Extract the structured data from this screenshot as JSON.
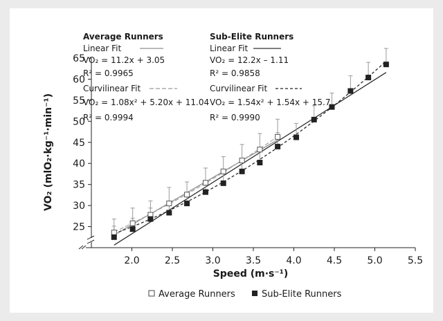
{
  "chart_data": {
    "type": "scatter",
    "xlabel": "Speed (m·s⁻¹)",
    "ylabel": "VO₂ (mlO₂·kg⁻¹·min⁻¹)",
    "xlim": [
      1.5,
      5.5
    ],
    "ylim": [
      20,
      65
    ],
    "x_ticks": [
      "2.0",
      "2.5",
      "3.0",
      "3.5",
      "4.0",
      "4.5",
      "5.0",
      "5.5"
    ],
    "y_ticks": [
      "25",
      "30",
      "35",
      "40",
      "45",
      "50",
      "55",
      "60",
      "65"
    ],
    "legend_position": "bottom",
    "series": [
      {
        "name": "Average Runners",
        "marker": "open-square",
        "color": "#555555",
        "x": [
          1.78,
          2.01,
          2.23,
          2.46,
          2.68,
          2.91,
          3.13,
          3.36,
          3.58,
          3.8
        ],
        "y": [
          23.6,
          25.8,
          27.8,
          30.5,
          32.6,
          35.4,
          38.1,
          40.7,
          43.3,
          46.3
        ],
        "err": [
          3.2,
          3.6,
          3.3,
          3.8,
          3.0,
          3.5,
          3.5,
          3.8,
          3.8,
          4.2
        ]
      },
      {
        "name": "Sub-Elite Runners",
        "marker": "filled-square",
        "color": "#222222",
        "x": [
          1.78,
          2.01,
          2.23,
          2.46,
          2.68,
          2.91,
          3.13,
          3.36,
          3.58,
          3.8,
          4.03,
          4.25,
          4.47,
          4.7,
          4.92,
          5.14
        ],
        "y": [
          22.5,
          24.4,
          26.8,
          28.3,
          30.5,
          33.2,
          35.3,
          38.1,
          40.2,
          44.0,
          46.2,
          50.4,
          53.4,
          57.2,
          60.4,
          63.5
        ],
        "err": [
          2.6,
          2.6,
          2.6,
          2.6,
          2.6,
          2.6,
          2.6,
          2.8,
          3.0,
          3.3,
          3.3,
          3.3,
          3.3,
          3.6,
          3.6,
          3.8
        ]
      }
    ],
    "fits": {
      "average": {
        "header": "Average Runners",
        "linear_label": "Linear Fit",
        "linear_eq": "VO₂ = 11.2x + 3.05",
        "linear_r2": "R² = 0.9965",
        "curv_label": "Curvilinear Fit",
        "curv_eq": "VO₂ = 1.08x² + 5.20x + 11.04",
        "curv_r2": "R² = 0.9994",
        "linear": [
          11.2,
          3.05
        ],
        "curv": [
          1.08,
          5.2,
          11.04
        ],
        "range": [
          1.78,
          3.8
        ]
      },
      "subelite": {
        "header": "Sub-Elite Runners",
        "linear_label": "Linear Fit",
        "linear_eq": "VO₂ = 12.2x – 1.11",
        "linear_r2": "R² = 0.9858",
        "curv_label": "Curvilinear Fit",
        "curv_eq": "VO₂ = 1.54x² + 1.54x + 15.7",
        "curv_r2": "R² = 0.9990",
        "linear": [
          12.2,
          -1.11
        ],
        "curv": [
          1.54,
          1.54,
          15.7
        ],
        "range": [
          1.78,
          5.14
        ]
      }
    },
    "legend": {
      "average": "Average Runners",
      "subelite": "Sub-Elite Runners"
    }
  }
}
